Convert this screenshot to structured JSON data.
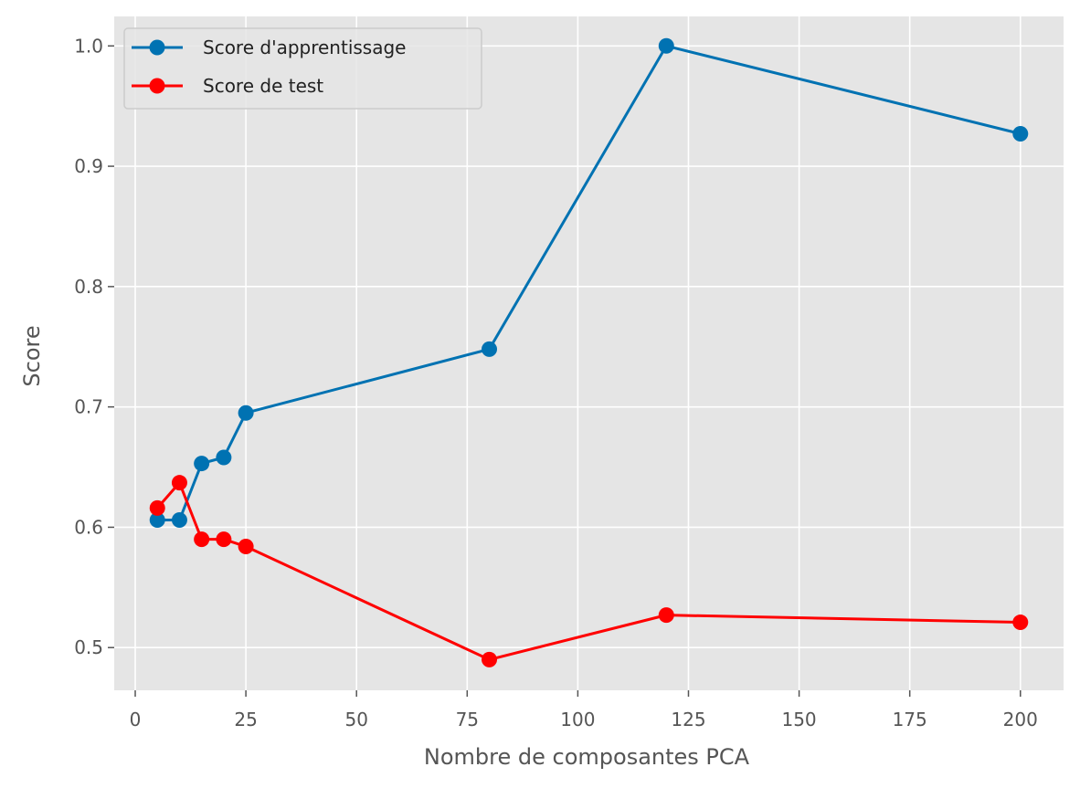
{
  "chart_data": {
    "type": "line",
    "title": "",
    "xlabel": "Nombre de composantes PCA",
    "ylabel": "Score",
    "x": [
      5,
      10,
      15,
      20,
      25,
      80,
      120,
      200
    ],
    "xlim": [
      -4.75,
      209.75
    ],
    "ylim": [
      0.4645,
      1.0245
    ],
    "xticks": [
      0,
      25,
      50,
      75,
      100,
      125,
      150,
      175,
      200
    ],
    "xtick_labels": [
      "0",
      "25",
      "50",
      "75",
      "100",
      "125",
      "150",
      "175",
      "200"
    ],
    "yticks": [
      0.5,
      0.6,
      0.7,
      0.8,
      0.9,
      1.0
    ],
    "ytick_labels": [
      "0.5",
      "0.6",
      "0.7",
      "0.8",
      "0.9",
      "1.0"
    ],
    "grid": true,
    "legend_position": "upper-left",
    "series": [
      {
        "name": "Score d'apprentissage",
        "color": "#0072B2",
        "values": [
          0.606,
          0.606,
          0.653,
          0.658,
          0.695,
          0.748,
          1.0,
          0.927
        ]
      },
      {
        "name": "Score de test",
        "color": "#FF0000",
        "values": [
          0.616,
          0.637,
          0.59,
          0.59,
          0.584,
          0.49,
          0.527,
          0.521
        ]
      }
    ],
    "colors": {
      "plot_background": "#E5E5E5",
      "grid": "#FFFFFF",
      "tick_text": "#555555",
      "legend_background": "#E5E5E5",
      "legend_border": "#CCCCCC"
    }
  }
}
